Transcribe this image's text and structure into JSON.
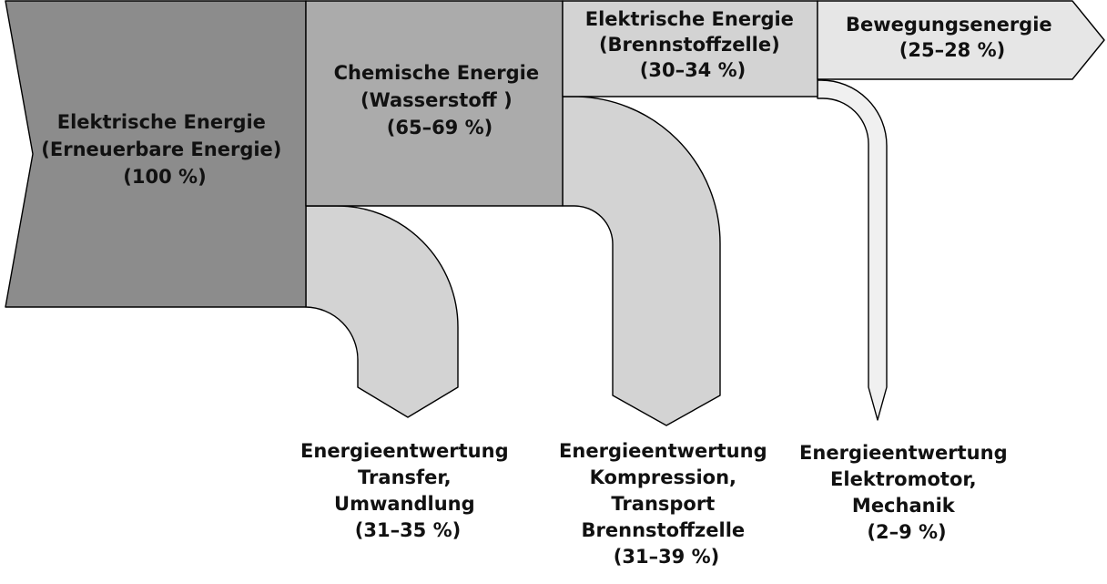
{
  "colors": {
    "source": "#8c8c8c",
    "chemical": "#ababab",
    "electric_fc": "#d3d3d3",
    "motion": "#e6e6e6",
    "loss_transfer": "#d3d3d3",
    "loss_compression": "#d3d3d3",
    "loss_motor": "#f0f0f0",
    "outline": "#000000"
  },
  "stages": [
    {
      "id": "source",
      "lines": [
        "Elektrische Energie",
        "(Erneuerbare Energie)",
        "(100 %)"
      ]
    },
    {
      "id": "chemical",
      "lines": [
        "Chemische Energie",
        "(Wasserstoff )",
        "(65–69 %)"
      ]
    },
    {
      "id": "electric_fc",
      "lines": [
        "Elektrische Energie",
        "(Brennstoffzelle)",
        "(30–34 %)"
      ]
    },
    {
      "id": "motion",
      "lines": [
        "Bewegungsenergie",
        "(25–28 %)"
      ]
    }
  ],
  "losses": [
    {
      "id": "loss_transfer",
      "lines": [
        "Energieentwertung",
        "Transfer,",
        "Umwandlung",
        "(31–35 %)"
      ]
    },
    {
      "id": "loss_compression",
      "lines": [
        "Energieentwertung",
        "Kompression,",
        "Transport",
        "Brennstoffzelle",
        "(31–39 %)"
      ]
    },
    {
      "id": "loss_motor",
      "lines": [
        "Energieentwertung",
        "Elektromotor,",
        "Mechanik",
        "(2–9 %)"
      ]
    }
  ]
}
